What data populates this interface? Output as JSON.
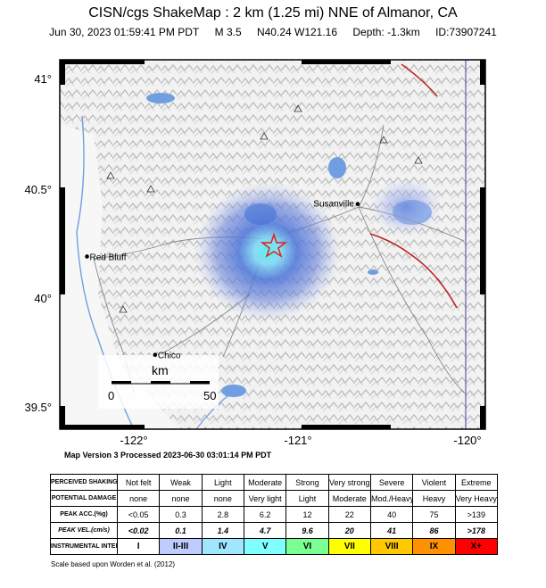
{
  "header": {
    "title": "CISN/cgs ShakeMap : 2 km (1.25 mi) NNE of Almanor, CA",
    "time": "Jun 30, 2023 01:59:41 PM PDT",
    "magnitude": "M 3.5",
    "location": "N40.24 W121.16",
    "depth": "Depth: -1.3km",
    "event_id": "ID:73907241"
  },
  "axes": {
    "lat_ticks": [
      {
        "label": "41°",
        "value": 41.0
      },
      {
        "label": "40.5°",
        "value": 40.5
      },
      {
        "label": "40°",
        "value": 40.0
      },
      {
        "label": "39.5°",
        "value": 39.5
      }
    ],
    "lon_ticks": [
      {
        "label": "-122°",
        "value": -122.0
      },
      {
        "label": "-121°",
        "value": -121.0
      },
      {
        "label": "-120°",
        "value": -120.0
      }
    ]
  },
  "map": {
    "cities": [
      {
        "name": "Susanville",
        "lat": 40.42,
        "lon": -120.65
      },
      {
        "name": "Red Bluff",
        "lat": 40.18,
        "lon": -122.24
      },
      {
        "name": "Chico",
        "lat": 39.73,
        "lon": -121.84
      }
    ],
    "epicenter": {
      "lat": 40.24,
      "lon": -121.16
    },
    "scale_bar": {
      "unit": "km",
      "start_label": "0",
      "end_label": "50"
    },
    "colors": {
      "epicenter": "#e02020",
      "fault": "#c02020",
      "water": "#6f9fe0"
    }
  },
  "map_info": "Map Version 3 Processed 2023-06-30 03:01:14 PM PDT",
  "legend": {
    "row_labels": {
      "shaking": "PERCEIVED SHAKING",
      "damage": "POTENTIAL DAMAGE",
      "acc": "PEAK ACC.(%g)",
      "vel": "PEAK VEL.(cm/s)",
      "mmi": "INSTRUMENTAL INTENSITY"
    },
    "shaking": [
      "Not felt",
      "Weak",
      "Light",
      "Moderate",
      "Strong",
      "Very strong",
      "Severe",
      "Violent",
      "Extreme"
    ],
    "damage": [
      "none",
      "none",
      "none",
      "Very light",
      "Light",
      "Moderate",
      "Mod./Heavy",
      "Heavy",
      "Very Heavy"
    ],
    "acc": [
      "<0.05",
      "0.3",
      "2.8",
      "6.2",
      "12",
      "22",
      "40",
      "75",
      ">139"
    ],
    "vel": [
      "<0.02",
      "0.1",
      "1.4",
      "4.7",
      "9.6",
      "20",
      "41",
      "86",
      ">178"
    ],
    "mmi": [
      "I",
      "II-III",
      "IV",
      "V",
      "VI",
      "VII",
      "VIII",
      "IX",
      "X+"
    ],
    "mmi_colors": [
      "#ffffff",
      "#bfccff",
      "#a0e6ff",
      "#80ffff",
      "#7aff93",
      "#ffff00",
      "#ffc800",
      "#ff9100",
      "#ff0000"
    ]
  },
  "credit": "Scale based upon Worden et al. (2012)"
}
